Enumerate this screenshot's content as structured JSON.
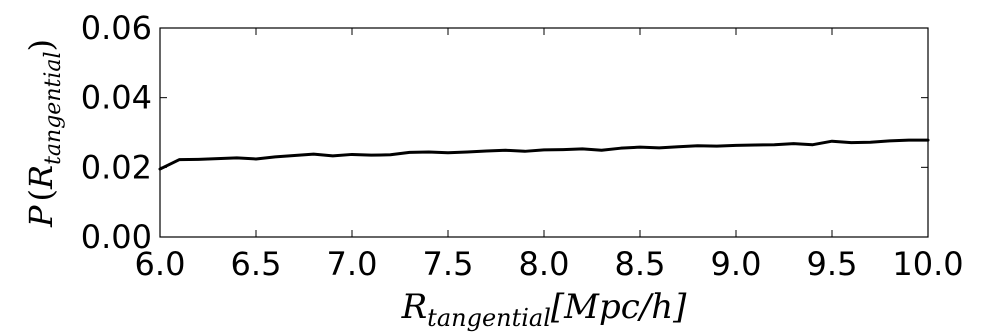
{
  "chart_data": {
    "type": "line",
    "title": "",
    "xlabel": "",
    "ylabel": "",
    "xlabel_parts": {
      "main": "R",
      "sub": "tangential",
      "unit": "[Mpc/h]"
    },
    "ylabel_parts": {
      "main": "P",
      "open": "(",
      "inner": "R",
      "sub": "tangential",
      "close": ")"
    },
    "xlim": [
      6.0,
      10.0
    ],
    "ylim": [
      0.0,
      0.06
    ],
    "x_ticks": [
      6.0,
      6.5,
      7.0,
      7.5,
      8.0,
      8.5,
      9.0,
      9.5,
      10.0
    ],
    "y_ticks": [
      0.0,
      0.02,
      0.04,
      0.06
    ],
    "x_tick_labels": [
      "6.0",
      "6.5",
      "7.0",
      "7.5",
      "8.0",
      "8.5",
      "9.0",
      "9.5",
      "10.0"
    ],
    "y_tick_labels": [
      "0.00",
      "0.02",
      "0.04",
      "0.06"
    ],
    "grid": false,
    "legend": "none",
    "line_color": "#000000",
    "series": [
      {
        "x": [
          6.0,
          6.1,
          6.2,
          6.3,
          6.4,
          6.5,
          6.6,
          6.7,
          6.8,
          6.9,
          7.0,
          7.1,
          7.2,
          7.3,
          7.4,
          7.5,
          7.6,
          7.7,
          7.8,
          7.9,
          8.0,
          8.1,
          8.2,
          8.3,
          8.4,
          8.5,
          8.6,
          8.7,
          8.8,
          8.9,
          9.0,
          9.1,
          9.2,
          9.3,
          9.4,
          9.5,
          9.6,
          9.7,
          9.8,
          9.9,
          10.0
        ],
        "y": [
          0.0195,
          0.0222,
          0.0223,
          0.0225,
          0.0227,
          0.0224,
          0.023,
          0.0234,
          0.0238,
          0.0233,
          0.0237,
          0.0235,
          0.0236,
          0.0243,
          0.0244,
          0.0242,
          0.0244,
          0.0247,
          0.0249,
          0.0246,
          0.025,
          0.0251,
          0.0253,
          0.0249,
          0.0255,
          0.0258,
          0.0256,
          0.0259,
          0.0262,
          0.0261,
          0.0263,
          0.0264,
          0.0265,
          0.0268,
          0.0265,
          0.0275,
          0.0271,
          0.0272,
          0.0276,
          0.0278,
          0.0278
        ]
      }
    ]
  }
}
